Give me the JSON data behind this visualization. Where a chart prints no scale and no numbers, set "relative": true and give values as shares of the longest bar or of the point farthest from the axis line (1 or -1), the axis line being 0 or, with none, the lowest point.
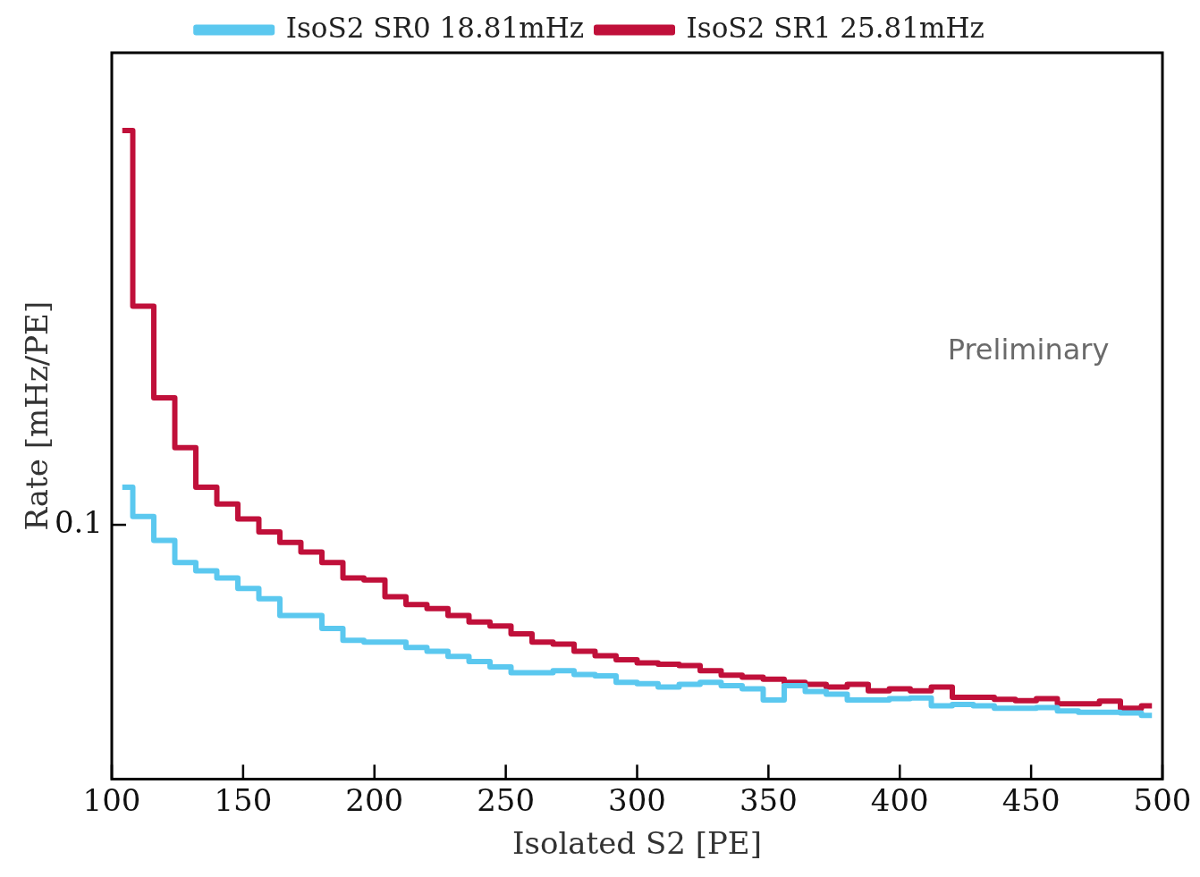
{
  "chart_data": {
    "type": "step",
    "xlabel": "Isolated S2 [PE]",
    "ylabel": "Rate [mHz/PE]",
    "relative": true,
    "legend": "top",
    "annotations": [
      "Preliminary",
      "0.1"
    ],
    "x": [
      104,
      112,
      120,
      128,
      136,
      144,
      152,
      160,
      168,
      176,
      184,
      192,
      200,
      208,
      216,
      224,
      232,
      240,
      248,
      256,
      264,
      272,
      280,
      288,
      296,
      304,
      312,
      320,
      328,
      336,
      344,
      352,
      360,
      368,
      376,
      384,
      392,
      400,
      408,
      416,
      424,
      432,
      440,
      448,
      456,
      464,
      472,
      480,
      488,
      496
    ],
    "xlim": [
      100,
      500
    ],
    "xticks": [
      100,
      150,
      200,
      250,
      300,
      350,
      400,
      450,
      500
    ],
    "series": [
      {
        "name": "IsoS2 SR0 18.81mHz",
        "color": "#5bc8ef",
        "values": [
          0.45,
          0.405,
          0.368,
          0.334,
          0.321,
          0.31,
          0.294,
          0.278,
          0.252,
          0.252,
          0.232,
          0.214,
          0.211,
          0.211,
          0.203,
          0.197,
          0.189,
          0.181,
          0.173,
          0.164,
          0.164,
          0.167,
          0.161,
          0.159,
          0.149,
          0.147,
          0.142,
          0.146,
          0.149,
          0.144,
          0.139,
          0.122,
          0.144,
          0.135,
          0.131,
          0.122,
          0.122,
          0.124,
          0.125,
          0.113,
          0.115,
          0.113,
          0.109,
          0.109,
          0.11,
          0.105,
          0.103,
          0.103,
          0.102,
          0.098
        ]
      },
      {
        "name": "IsoS2 SR1 25.81mHz",
        "color": "#c0103a",
        "values": [
          1,
          0.729,
          0.588,
          0.511,
          0.45,
          0.424,
          0.401,
          0.381,
          0.365,
          0.35,
          0.334,
          0.31,
          0.307,
          0.281,
          0.269,
          0.263,
          0.252,
          0.242,
          0.236,
          0.224,
          0.211,
          0.208,
          0.197,
          0.19,
          0.184,
          0.179,
          0.177,
          0.175,
          0.167,
          0.16,
          0.157,
          0.154,
          0.149,
          0.146,
          0.142,
          0.146,
          0.136,
          0.139,
          0.136,
          0.142,
          0.126,
          0.126,
          0.123,
          0.121,
          0.124,
          0.116,
          0.116,
          0.12,
          0.109,
          0.113
        ]
      }
    ]
  }
}
